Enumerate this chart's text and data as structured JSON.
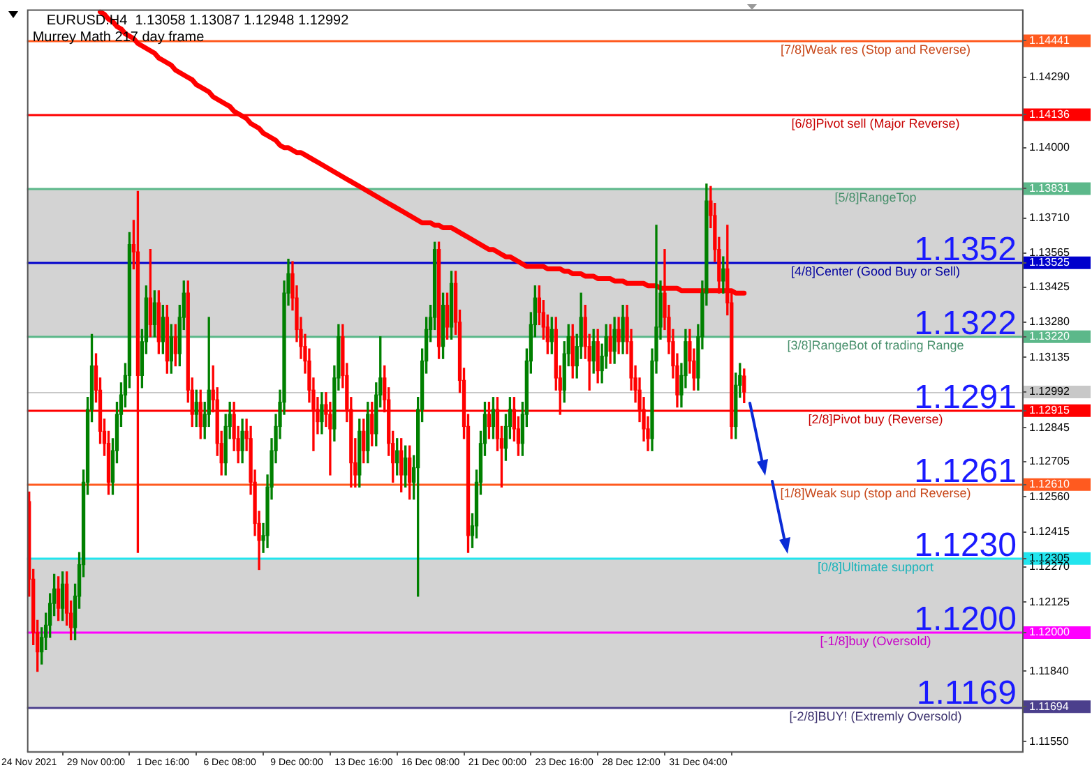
{
  "chart_data": {
    "type": "candlestick",
    "title": "EURUSD.H4  1.13058 1.13087 1.12948 1.12992",
    "subtitle": "Murrey Math 217 day frame",
    "categories": [
      "24 Nov 2021",
      null,
      null,
      null,
      null,
      null,
      null,
      null,
      null,
      null,
      null,
      null,
      null,
      null,
      null,
      null,
      "29 Nov 00:00",
      null,
      null,
      null,
      null,
      null,
      null,
      null,
      null,
      null,
      null,
      null,
      null,
      null,
      null,
      null,
      "1 Dec 16:00",
      null,
      null,
      null,
      null,
      null,
      null,
      null,
      null,
      null,
      null,
      null,
      null,
      null,
      null,
      null,
      "6 Dec 08:00",
      null,
      null,
      null,
      null,
      null,
      null,
      null,
      null,
      null,
      null,
      null,
      null,
      null,
      null,
      null,
      "9 Dec 00:00",
      null,
      null,
      null,
      null,
      null,
      null,
      null,
      null,
      null,
      null,
      null,
      null,
      null,
      null,
      null,
      "13 Dec 16:00",
      null,
      null,
      null,
      null,
      null,
      null,
      null,
      null,
      null,
      null,
      null,
      null,
      null,
      null,
      null,
      "16 Dec 08:00",
      null,
      null,
      null,
      null,
      null,
      null,
      null,
      null,
      null,
      null,
      null,
      null,
      null,
      null,
      null,
      "21 Dec 00:00",
      null,
      null,
      null,
      null,
      null,
      null,
      null,
      null,
      null,
      null,
      null,
      null,
      null,
      null,
      null,
      "23 Dec 16:00",
      null,
      null,
      null,
      null,
      null,
      null,
      null,
      null,
      null,
      null,
      null,
      null,
      null,
      null,
      null,
      "28 Dec 12:00",
      null,
      null,
      null,
      null,
      null,
      null,
      null,
      null,
      null,
      null,
      null,
      null,
      null,
      null,
      null,
      "31 Dec 04:00",
      null,
      null,
      null,
      null,
      null,
      null,
      null,
      null,
      null,
      null,
      null,
      null,
      null,
      null,
      null,
      null,
      null,
      null,
      null,
      null,
      null,
      null,
      null,
      null,
      null,
      null,
      null,
      null,
      null,
      null,
      null,
      null,
      null,
      null,
      null,
      null,
      null,
      null,
      null,
      null,
      null,
      null,
      null,
      null,
      null,
      null,
      null,
      null,
      null,
      null,
      null,
      null,
      null,
      null,
      null,
      null,
      null,
      null,
      null,
      null,
      null,
      null,
      null,
      null,
      null,
      null,
      null,
      null,
      null,
      null,
      null,
      null,
      null,
      null,
      null,
      null,
      null
    ],
    "ohlc": [
      [
        1.1254,
        1.1258,
        1.1215,
        1.1222
      ],
      [
        1.1222,
        1.1226,
        1.1195,
        1.12
      ],
      [
        1.12,
        1.1205,
        1.1184,
        1.1192
      ],
      [
        1.1192,
        1.1202,
        1.1187,
        1.1198
      ],
      [
        1.1198,
        1.1208,
        1.1193,
        1.1203
      ],
      [
        1.1203,
        1.1216,
        1.1198,
        1.1212
      ],
      [
        1.1212,
        1.1224,
        1.1207,
        1.1218
      ],
      [
        1.1218,
        1.1223,
        1.1205,
        1.121
      ],
      [
        1.121,
        1.1225,
        1.1205,
        1.122
      ],
      [
        1.122,
        1.1225,
        1.1203,
        1.1208
      ],
      [
        1.1208,
        1.1213,
        1.1197,
        1.1202
      ],
      [
        1.1202,
        1.122,
        1.1197,
        1.1215
      ],
      [
        1.1215,
        1.1233,
        1.121,
        1.1228
      ],
      [
        1.1228,
        1.1267,
        1.1223,
        1.1262
      ],
      [
        1.1262,
        1.1297,
        1.1257,
        1.1292
      ],
      [
        1.1292,
        1.1323,
        1.1287,
        1.131
      ],
      [
        1.131,
        1.1315,
        1.1295,
        1.13
      ],
      [
        1.13,
        1.1305,
        1.1278,
        1.1283
      ],
      [
        1.1283,
        1.1288,
        1.1273,
        1.1278
      ],
      [
        1.1278,
        1.1283,
        1.1257,
        1.1262
      ],
      [
        1.1262,
        1.128,
        1.1257,
        1.1275
      ],
      [
        1.1275,
        1.1295,
        1.127,
        1.129
      ],
      [
        1.129,
        1.1303,
        1.1285,
        1.1298
      ],
      [
        1.1298,
        1.1311,
        1.1293,
        1.1306
      ],
      [
        1.1306,
        1.1365,
        1.1301,
        1.136
      ],
      [
        1.136,
        1.137,
        1.135,
        1.1357
      ],
      [
        1.1357,
        1.1382,
        1.1233,
        1.1306
      ],
      [
        1.1306,
        1.1325,
        1.1301,
        1.132
      ],
      [
        1.132,
        1.1343,
        1.1315,
        1.1338
      ],
      [
        1.1338,
        1.1358,
        1.1322,
        1.1327
      ],
      [
        1.1327,
        1.1341,
        1.1322,
        1.1336
      ],
      [
        1.1336,
        1.1341,
        1.1315,
        1.132
      ],
      [
        1.132,
        1.1335,
        1.1315,
        1.133
      ],
      [
        1.133,
        1.1335,
        1.1307,
        1.1312
      ],
      [
        1.1312,
        1.1327,
        1.1307,
        1.1322
      ],
      [
        1.1322,
        1.1327,
        1.131,
        1.1315
      ],
      [
        1.1315,
        1.1335,
        1.131,
        1.133
      ],
      [
        1.133,
        1.1345,
        1.1325,
        1.134
      ],
      [
        1.134,
        1.1345,
        1.1295,
        1.13
      ],
      [
        1.13,
        1.1305,
        1.1285,
        1.129
      ],
      [
        1.129,
        1.13,
        1.1285,
        1.1295
      ],
      [
        1.1295,
        1.13,
        1.128,
        1.1285
      ],
      [
        1.1285,
        1.1295,
        1.128,
        1.129
      ],
      [
        1.129,
        1.133,
        1.1285,
        1.13
      ],
      [
        1.13,
        1.131,
        1.1291,
        1.1296
      ],
      [
        1.1296,
        1.1301,
        1.1273,
        1.1278
      ],
      [
        1.1278,
        1.1283,
        1.1265,
        1.127
      ],
      [
        1.127,
        1.129,
        1.1265,
        1.1285
      ],
      [
        1.1285,
        1.1295,
        1.128,
        1.129
      ],
      [
        1.129,
        1.1295,
        1.1275,
        1.128
      ],
      [
        1.128,
        1.1285,
        1.127,
        1.1275
      ],
      [
        1.1275,
        1.1288,
        1.127,
        1.1283
      ],
      [
        1.1283,
        1.1288,
        1.1275,
        1.128
      ],
      [
        1.128,
        1.1285,
        1.1257,
        1.1262
      ],
      [
        1.1262,
        1.1267,
        1.124,
        1.1245
      ],
      [
        1.1245,
        1.125,
        1.1226,
        1.1238
      ],
      [
        1.1238,
        1.1245,
        1.1233,
        1.124
      ],
      [
        1.124,
        1.1265,
        1.1235,
        1.126
      ],
      [
        1.126,
        1.128,
        1.1255,
        1.1275
      ],
      [
        1.1275,
        1.129,
        1.127,
        1.1285
      ],
      [
        1.1285,
        1.13,
        1.128,
        1.1295
      ],
      [
        1.1295,
        1.1345,
        1.129,
        1.134
      ],
      [
        1.134,
        1.1354,
        1.1335,
        1.1348
      ],
      [
        1.1348,
        1.1353,
        1.1333,
        1.1338
      ],
      [
        1.1338,
        1.1343,
        1.132,
        1.1325
      ],
      [
        1.1325,
        1.133,
        1.1313,
        1.1318
      ],
      [
        1.1318,
        1.1323,
        1.1307,
        1.1312
      ],
      [
        1.1312,
        1.1317,
        1.1295,
        1.13
      ],
      [
        1.13,
        1.1305,
        1.1275,
        1.1292
      ],
      [
        1.1292,
        1.1297,
        1.1282,
        1.1287
      ],
      [
        1.1287,
        1.1299,
        1.1282,
        1.1294
      ],
      [
        1.1294,
        1.1299,
        1.1285,
        1.129
      ],
      [
        1.129,
        1.1295,
        1.1265,
        1.1284
      ],
      [
        1.1284,
        1.131,
        1.1279,
        1.1305
      ],
      [
        1.1305,
        1.1327,
        1.13,
        1.1322
      ],
      [
        1.1322,
        1.1327,
        1.1301,
        1.1306
      ],
      [
        1.1306,
        1.1311,
        1.1287,
        1.1292
      ],
      [
        1.1292,
        1.1297,
        1.126,
        1.127
      ],
      [
        1.127,
        1.128,
        1.126,
        1.1265
      ],
      [
        1.1265,
        1.1288,
        1.126,
        1.1283
      ],
      [
        1.1283,
        1.1288,
        1.127,
        1.1275
      ],
      [
        1.1275,
        1.1295,
        1.127,
        1.129
      ],
      [
        1.129,
        1.1295,
        1.1277,
        1.1282
      ],
      [
        1.1282,
        1.1303,
        1.1277,
        1.1298
      ],
      [
        1.1298,
        1.1322,
        1.1293,
        1.1305
      ],
      [
        1.1305,
        1.131,
        1.1291,
        1.1296
      ],
      [
        1.1296,
        1.1301,
        1.1273,
        1.1278
      ],
      [
        1.1278,
        1.1283,
        1.1262,
        1.127
      ],
      [
        1.127,
        1.128,
        1.1265,
        1.1275
      ],
      [
        1.1275,
        1.128,
        1.1258,
        1.1265
      ],
      [
        1.1265,
        1.1277,
        1.126,
        1.1272
      ],
      [
        1.1272,
        1.1277,
        1.1255,
        1.1262
      ],
      [
        1.1262,
        1.1273,
        1.1255,
        1.1268
      ],
      [
        1.1268,
        1.1297,
        1.1215,
        1.1292
      ],
      [
        1.1292,
        1.1317,
        1.1287,
        1.1312
      ],
      [
        1.1312,
        1.133,
        1.1307,
        1.1325
      ],
      [
        1.1325,
        1.1335,
        1.132,
        1.133
      ],
      [
        1.133,
        1.1361,
        1.1325,
        1.1358
      ],
      [
        1.1358,
        1.1361,
        1.1313,
        1.1318
      ],
      [
        1.1318,
        1.134,
        1.1313,
        1.1335
      ],
      [
        1.1335,
        1.134,
        1.1321,
        1.1326
      ],
      [
        1.1326,
        1.1349,
        1.1321,
        1.1344
      ],
      [
        1.1344,
        1.1349,
        1.1323,
        1.1328
      ],
      [
        1.1328,
        1.1333,
        1.1299,
        1.1304
      ],
      [
        1.1304,
        1.1309,
        1.128,
        1.1285
      ],
      [
        1.1285,
        1.129,
        1.1233,
        1.124
      ],
      [
        1.124,
        1.1249,
        1.1235,
        1.1244
      ],
      [
        1.1244,
        1.1267,
        1.1239,
        1.1262
      ],
      [
        1.1262,
        1.1283,
        1.1257,
        1.1278
      ],
      [
        1.1278,
        1.1295,
        1.1273,
        1.129
      ],
      [
        1.129,
        1.1295,
        1.128,
        1.1285
      ],
      [
        1.1285,
        1.1297,
        1.128,
        1.1292
      ],
      [
        1.1292,
        1.1297,
        1.1275,
        1.128
      ],
      [
        1.128,
        1.1285,
        1.126,
        1.1276
      ],
      [
        1.1276,
        1.129,
        1.1271,
        1.1285
      ],
      [
        1.1285,
        1.1297,
        1.128,
        1.1292
      ],
      [
        1.1292,
        1.1297,
        1.1279,
        1.1284
      ],
      [
        1.1284,
        1.1289,
        1.1273,
        1.1278
      ],
      [
        1.1278,
        1.1295,
        1.1273,
        1.129
      ],
      [
        1.129,
        1.1317,
        1.1285,
        1.1312
      ],
      [
        1.1312,
        1.1332,
        1.1307,
        1.1327
      ],
      [
        1.1327,
        1.1343,
        1.1322,
        1.1338
      ],
      [
        1.1338,
        1.1343,
        1.1327,
        1.1332
      ],
      [
        1.1332,
        1.1337,
        1.1321,
        1.1326
      ],
      [
        1.1326,
        1.1331,
        1.1315,
        1.132
      ],
      [
        1.132,
        1.133,
        1.1315,
        1.1325
      ],
      [
        1.1325,
        1.133,
        1.13,
        1.1305
      ],
      [
        1.1305,
        1.131,
        1.129,
        1.13
      ],
      [
        1.13,
        1.132,
        1.1295,
        1.1315
      ],
      [
        1.1315,
        1.1327,
        1.131,
        1.1322
      ],
      [
        1.1322,
        1.1327,
        1.1305,
        1.131
      ],
      [
        1.131,
        1.1323,
        1.1305,
        1.1318
      ],
      [
        1.1318,
        1.134,
        1.1313,
        1.133
      ],
      [
        1.133,
        1.1335,
        1.1313,
        1.1318
      ],
      [
        1.1318,
        1.1323,
        1.13,
        1.1312
      ],
      [
        1.1312,
        1.1325,
        1.1307,
        1.132
      ],
      [
        1.132,
        1.1325,
        1.1303,
        1.1308
      ],
      [
        1.1308,
        1.1319,
        1.1303,
        1.1314
      ],
      [
        1.1314,
        1.1327,
        1.1309,
        1.1322
      ],
      [
        1.1322,
        1.1327,
        1.1311,
        1.1316
      ],
      [
        1.1316,
        1.133,
        1.1311,
        1.1325
      ],
      [
        1.1325,
        1.133,
        1.1315,
        1.132
      ],
      [
        1.132,
        1.1335,
        1.1315,
        1.133
      ],
      [
        1.133,
        1.1335,
        1.1315,
        1.132
      ],
      [
        1.132,
        1.1325,
        1.13,
        1.1305
      ],
      [
        1.1305,
        1.131,
        1.1295,
        1.13
      ],
      [
        1.13,
        1.1305,
        1.1287,
        1.1292
      ],
      [
        1.1292,
        1.1297,
        1.1279,
        1.1284
      ],
      [
        1.1284,
        1.1289,
        1.1275,
        1.128
      ],
      [
        1.128,
        1.1317,
        1.1275,
        1.1312
      ],
      [
        1.1312,
        1.1368,
        1.1307,
        1.1326
      ],
      [
        1.1326,
        1.1345,
        1.1321,
        1.134
      ],
      [
        1.134,
        1.1358,
        1.1325,
        1.133
      ],
      [
        1.133,
        1.1335,
        1.1315,
        1.132
      ],
      [
        1.132,
        1.1325,
        1.1305,
        1.131
      ],
      [
        1.131,
        1.1315,
        1.1293,
        1.1298
      ],
      [
        1.1298,
        1.1311,
        1.1293,
        1.1306
      ],
      [
        1.1306,
        1.1325,
        1.1301,
        1.132
      ],
      [
        1.132,
        1.1325,
        1.1307,
        1.1312
      ],
      [
        1.1312,
        1.1317,
        1.13,
        1.1305
      ],
      [
        1.1305,
        1.1327,
        1.13,
        1.1322
      ],
      [
        1.1322,
        1.1345,
        1.1317,
        1.134
      ],
      [
        1.134,
        1.1385,
        1.1335,
        1.1378
      ],
      [
        1.1378,
        1.1384,
        1.1367,
        1.1372
      ],
      [
        1.1372,
        1.1377,
        1.1353,
        1.1358
      ],
      [
        1.1358,
        1.1363,
        1.134,
        1.1345
      ],
      [
        1.1345,
        1.1355,
        1.134,
        1.135
      ],
      [
        1.135,
        1.1368,
        1.1331,
        1.1336
      ],
      [
        1.1336,
        1.1341,
        1.128,
        1.1285
      ],
      [
        1.1285,
        1.1307,
        1.128,
        1.1302
      ],
      [
        1.1302,
        1.1311,
        1.1297,
        1.1306
      ],
      [
        1.13058,
        1.13087,
        1.12948,
        1.12992
      ],
      null,
      null,
      null,
      null,
      null,
      null,
      null,
      null,
      null,
      null,
      null,
      null,
      null,
      null,
      null,
      null,
      null,
      null,
      null,
      null,
      null,
      null,
      null,
      null,
      null,
      null,
      null,
      null,
      null,
      null,
      null,
      null,
      null,
      null,
      null,
      null,
      null,
      null,
      null,
      null,
      null,
      null,
      null,
      null,
      null,
      null,
      null,
      null,
      null,
      null,
      null,
      null,
      null,
      null,
      null,
      null,
      null,
      null,
      null,
      null,
      null,
      null,
      null,
      null,
      null,
      null
    ],
    "colors": [
      "#ff0000",
      "#ff0000",
      "#ff0000",
      "#008000",
      "#008000",
      "#008000",
      "#008000",
      "#ff0000",
      "#008000",
      "#ff0000",
      "#ff0000",
      "#008000",
      "#008000",
      "#008000",
      "#008000",
      "#008000",
      "#ff0000",
      "#ff0000",
      "#ff0000",
      "#ff0000",
      "#008000",
      "#008000",
      "#008000",
      "#008000",
      "#008000",
      "#ff0000",
      "#ff0000",
      "#008000",
      "#008000",
      "#ff0000",
      "#008000",
      "#ff0000",
      "#008000",
      "#ff0000",
      "#008000",
      "#ff0000",
      "#008000",
      "#008000",
      "#ff0000",
      "#ff0000",
      "#008000",
      "#ff0000",
      "#008000",
      "#008000",
      "#ff0000",
      "#ff0000",
      "#ff0000",
      "#008000",
      "#008000",
      "#ff0000",
      "#ff0000",
      "#008000",
      "#ff0000",
      "#ff0000",
      "#ff0000",
      "#ff0000",
      "#008000",
      "#008000",
      "#008000",
      "#008000",
      "#008000",
      "#008000",
      "#008000",
      "#ff0000",
      "#ff0000",
      "#ff0000",
      "#ff0000",
      "#ff0000",
      "#ff0000",
      "#ff0000",
      "#008000",
      "#ff0000",
      "#ff0000",
      "#008000",
      "#008000",
      "#ff0000",
      "#ff0000",
      "#ff0000",
      "#ff0000",
      "#008000",
      "#ff0000",
      "#008000",
      "#ff0000",
      "#008000",
      "#008000",
      "#ff0000",
      "#ff0000",
      "#ff0000",
      "#008000",
      "#ff0000",
      "#008000",
      "#ff0000",
      "#008000",
      "#008000",
      "#008000",
      "#008000",
      "#008000",
      "#008000",
      "#ff0000",
      "#008000",
      "#ff0000",
      "#008000",
      "#ff0000",
      "#ff0000",
      "#ff0000",
      "#ff0000",
      "#008000",
      "#008000",
      "#008000",
      "#008000",
      "#ff0000",
      "#008000",
      "#ff0000",
      "#ff0000",
      "#008000",
      "#008000",
      "#ff0000",
      "#ff0000",
      "#008000",
      "#008000",
      "#008000",
      "#008000",
      "#ff0000",
      "#ff0000",
      "#ff0000",
      "#008000",
      "#ff0000",
      "#ff0000",
      "#008000",
      "#008000",
      "#ff0000",
      "#008000",
      "#008000",
      "#ff0000",
      "#ff0000",
      "#008000",
      "#ff0000",
      "#008000",
      "#008000",
      "#ff0000",
      "#008000",
      "#ff0000",
      "#008000",
      "#ff0000",
      "#ff0000",
      "#ff0000",
      "#ff0000",
      "#ff0000",
      "#ff0000",
      "#008000",
      "#008000",
      "#008000",
      "#ff0000",
      "#ff0000",
      "#ff0000",
      "#ff0000",
      "#008000",
      "#008000",
      "#ff0000",
      "#ff0000",
      "#008000",
      "#008000",
      "#008000",
      "#ff0000",
      "#ff0000",
      "#ff0000",
      "#008000",
      "#ff0000",
      "#ff0000",
      "#008000",
      "#008000",
      "#ff0000",
      null,
      null,
      null,
      null,
      null,
      null,
      null,
      null,
      null,
      null,
      null,
      null,
      null,
      null,
      null,
      null,
      null,
      null,
      null,
      null,
      null,
      null,
      null,
      null,
      null,
      null,
      null,
      null,
      null,
      null,
      null,
      null,
      null,
      null,
      null,
      null,
      null,
      null,
      null,
      null,
      null,
      null,
      null,
      null,
      null,
      null,
      null,
      null,
      null,
      null,
      null,
      null,
      null,
      null,
      null,
      null,
      null,
      null,
      null,
      null,
      null,
      null,
      null,
      null,
      null,
      null
    ],
    "series": [
      {
        "type": "line",
        "color": "#ff0000",
        "values": [
          null,
          null,
          null,
          null,
          null,
          null,
          null,
          null,
          null,
          null,
          null,
          null,
          null,
          null,
          null,
          null,
          null,
          1.1456,
          1.1455,
          1.1453,
          1.1452,
          1.145,
          1.1449,
          1.1447,
          1.1446,
          1.1445,
          1.1443,
          1.1442,
          1.1441,
          1.144,
          1.1439,
          1.1437,
          1.1436,
          1.1435,
          1.1434,
          1.1432,
          1.1431,
          1.143,
          1.1429,
          1.1428,
          1.1426,
          1.1425,
          1.1424,
          1.1423,
          1.1421,
          1.142,
          1.1419,
          1.1418,
          1.1417,
          1.1415,
          1.1414,
          1.1413,
          1.1412,
          1.141,
          1.1409,
          1.1408,
          1.1406,
          1.1405,
          1.1404,
          1.1403,
          1.1401,
          1.14,
          1.14,
          1.1399,
          1.1398,
          1.1398,
          1.1397,
          1.1396,
          1.1395,
          1.1394,
          1.1393,
          1.1392,
          1.1391,
          1.139,
          1.1389,
          1.1388,
          1.1387,
          1.1386,
          1.1385,
          1.1384,
          1.1383,
          1.1382,
          1.1381,
          1.138,
          1.1379,
          1.1378,
          1.1377,
          1.1376,
          1.1375,
          1.1374,
          1.1373,
          1.1372,
          1.1371,
          1.137,
          1.1369,
          1.1369,
          1.1369,
          1.1368,
          1.1368,
          1.1367,
          1.1367,
          1.1367,
          1.1366,
          1.1365,
          1.1364,
          1.1363,
          1.1362,
          1.1361,
          1.136,
          1.1359,
          1.1358,
          1.1358,
          1.1357,
          1.1356,
          1.1355,
          1.1355,
          1.1354,
          1.1353,
          1.1352,
          1.1351,
          1.1351,
          1.1351,
          1.1351,
          1.1351,
          1.135,
          1.135,
          1.135,
          1.135,
          1.1349,
          1.1349,
          1.1348,
          1.1348,
          1.1348,
          1.1347,
          1.1347,
          1.1347,
          1.1346,
          1.1346,
          1.1346,
          1.1346,
          1.1345,
          1.1345,
          1.1345,
          1.1344,
          1.1344,
          1.1344,
          1.1344,
          1.1344,
          1.1343,
          1.1343,
          1.1343,
          1.1342,
          1.1342,
          1.1342,
          1.1342,
          1.1342,
          1.1341,
          1.1341,
          1.1341,
          1.1341,
          1.1341,
          1.1341,
          1.1341,
          1.1341,
          1.1341,
          1.1341,
          1.1341,
          1.1341,
          1.1341,
          1.134,
          1.134,
          1.134,
          null,
          null,
          null,
          null,
          null,
          null,
          null,
          null,
          null,
          null,
          null,
          null,
          null,
          null,
          null,
          null,
          null,
          null,
          null,
          null,
          null,
          null,
          null,
          null,
          null,
          null,
          null,
          null,
          null,
          null,
          null,
          null,
          null,
          null,
          null,
          null,
          null,
          null,
          null,
          null,
          null,
          null,
          null,
          null,
          null,
          null,
          null,
          null,
          null,
          null,
          null,
          null,
          null,
          null,
          null,
          null,
          null,
          null,
          null,
          null,
          null,
          null,
          null,
          null,
          null,
          null
        ]
      }
    ],
    "ylim": [
      1.1151,
      1.1457
    ],
    "yticks": [
      {
        "value": 1.1155,
        "label": "1.11550"
      },
      {
        "value": 1.1184,
        "label": "1.11840"
      },
      {
        "value": 1.12125,
        "label": "1.12125"
      },
      {
        "value": 1.1227,
        "label": "1.12270"
      },
      {
        "value": 1.12415,
        "label": "1.12415"
      },
      {
        "value": 1.1256,
        "label": "1.12560"
      },
      {
        "value": 1.12705,
        "label": "1.12705"
      },
      {
        "value": 1.12845,
        "label": "1.12845"
      },
      {
        "value": 1.13135,
        "label": "1.13135"
      },
      {
        "value": 1.1328,
        "label": "1.13280"
      },
      {
        "value": 1.13425,
        "label": "1.13425"
      },
      {
        "value": 1.13565,
        "label": "1.13565"
      },
      {
        "value": 1.1371,
        "label": "1.13710"
      },
      {
        "value": 1.14,
        "label": "1.14000"
      },
      {
        "value": 1.1429,
        "label": "1.14290"
      },
      {
        "value": 1.14441,
        "label": "1.14441"
      },
      {
        "value": 1.14136,
        "label": "1.14136"
      },
      {
        "value": 1.13831,
        "label": "1.13831"
      },
      {
        "value": 1.13525,
        "label": "1.13525"
      },
      {
        "value": 1.1322,
        "label": "1.13220"
      },
      {
        "value": 1.12992,
        "label": "1.12992"
      },
      {
        "value": 1.12915,
        "label": "1.12915"
      },
      {
        "value": 1.1261,
        "label": "1.12610"
      },
      {
        "value": 1.12305,
        "label": "1.12305"
      },
      {
        "value": 1.12,
        "label": "1.12000"
      },
      {
        "value": 1.11694,
        "label": "1.11694"
      }
    ],
    "bands": [
      {
        "axis": "y",
        "from": 1.1322,
        "to": 1.13831,
        "color": "#d3d3d3"
      },
      {
        "axis": "y",
        "from": 1.11694,
        "to": 1.12305,
        "color": "#d3d3d3"
      }
    ],
    "ref_lines": [
      {
        "axis": "y",
        "value": 1.14441,
        "label": "[7/8]Weak res (Stop and Reverse)",
        "color": "#ff5a1f"
      },
      {
        "axis": "y",
        "value": 1.14136,
        "label": "[6/8]Pivot sell (Major Reverse)",
        "color": "#ff0000"
      },
      {
        "axis": "y",
        "value": 1.13831,
        "label": "[5/8]RangeTop",
        "color": "#5cb88a"
      },
      {
        "axis": "y",
        "value": 1.13525,
        "label": "[4/8]Center (Good Buy or Sell)",
        "color": "#0000cc"
      },
      {
        "axis": "y",
        "value": 1.1322,
        "label": "[3/8]RangeBot of trading Range",
        "color": "#5cb88a"
      },
      {
        "axis": "y",
        "value": 1.12992,
        "label": null,
        "color": "#c8c8c8"
      },
      {
        "axis": "y",
        "value": 1.12915,
        "label": "[2/8]Pivot buy (Reverse)",
        "color": "#ff0000"
      },
      {
        "axis": "y",
        "value": 1.1261,
        "label": "[1/8]Weak sup (stop and Reverse)",
        "color": "#ff5a1f"
      },
      {
        "axis": "y",
        "value": 1.12305,
        "label": "[0/8]Ultimate support",
        "color": "#22e5ee"
      },
      {
        "axis": "y",
        "value": 1.12,
        "label": "[-1/8]buy (Oversold)",
        "color": "#ff00ff"
      },
      {
        "axis": "y",
        "value": 1.11694,
        "label": "[-2/8]BUY! (Extremly Oversold)",
        "color": "#4b3f8c"
      }
    ],
    "annotations": [
      {
        "text": "1.1352",
        "y": 1.13525
      },
      {
        "text": "1.1322",
        "y": 1.1322
      },
      {
        "text": "1.1291",
        "y": 1.12915
      },
      {
        "text": "1.1261",
        "y": 1.1261
      },
      {
        "text": "1.1230",
        "y": 1.12305
      },
      {
        "text": "1.1200",
        "y": 1.12
      },
      {
        "text": "1.1169",
        "y": 1.11694
      }
    ]
  }
}
